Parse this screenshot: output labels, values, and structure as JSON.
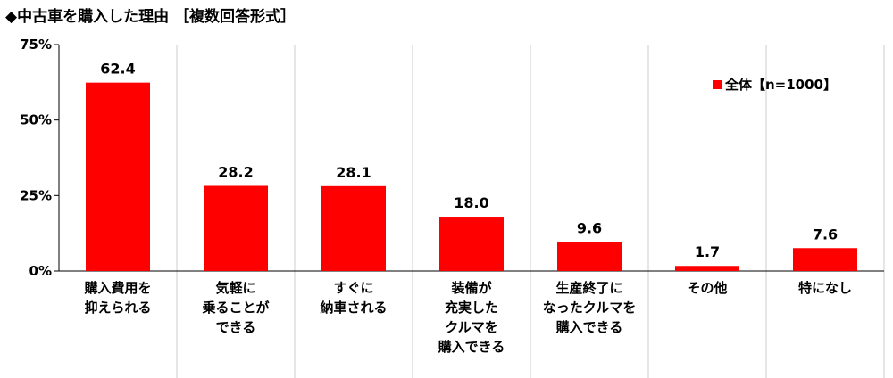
{
  "chart_data": {
    "type": "bar",
    "title": "◆中古車を購入した理由 ［複数回答形式］",
    "categories": [
      "購入費用を\n抑えられる",
      "気軽に\n乗ることが\nできる",
      "すぐに\n納車される",
      "装備が\n充実した\nクルマを\n購入できる",
      "生産終了に\nなったクルマを\n購入できる",
      "その他",
      "特になし"
    ],
    "series": [
      {
        "name": "全体【n=1000】",
        "values": [
          62.4,
          28.2,
          28.1,
          18.0,
          9.6,
          1.7,
          7.6
        ]
      }
    ],
    "value_labels": [
      "62.4",
      "28.2",
      "28.1",
      "18.0",
      "9.6",
      "1.7",
      "7.6"
    ],
    "y_ticks": [
      "0%",
      "25%",
      "50%",
      "75%"
    ],
    "y_tick_values": [
      0,
      25,
      50,
      75
    ],
    "ylim": [
      0,
      75
    ],
    "xlabel": "",
    "ylabel": "",
    "legend_position": "top-right",
    "grid": "vertical category separators",
    "bar_color": "#ff0000"
  }
}
